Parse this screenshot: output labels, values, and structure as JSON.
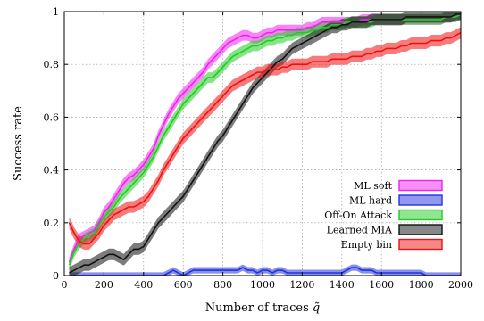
{
  "chart_data": {
    "type": "line",
    "xlabel": "Number of traces",
    "xlabel_symbol": "q̃",
    "ylabel": "Success rate",
    "xlim": [
      0,
      2000
    ],
    "ylim": [
      0,
      1
    ],
    "x_ticks": [
      0,
      200,
      400,
      600,
      800,
      1000,
      1200,
      1400,
      1600,
      1800,
      2000
    ],
    "y_ticks": [
      0,
      0.2,
      0.4,
      0.6,
      0.8,
      1
    ],
    "y_tick_labels": [
      "0",
      "0.2",
      "0.4",
      "0.6",
      "0.8",
      "1"
    ],
    "grid": true,
    "legend_position": "bottom-right",
    "x": [
      25,
      50,
      75,
      100,
      125,
      150,
      175,
      200,
      225,
      250,
      275,
      300,
      325,
      350,
      375,
      400,
      425,
      450,
      475,
      500,
      525,
      550,
      575,
      600,
      625,
      650,
      675,
      700,
      725,
      750,
      775,
      800,
      825,
      850,
      875,
      900,
      925,
      950,
      975,
      1000,
      1025,
      1050,
      1075,
      1100,
      1125,
      1150,
      1175,
      1200,
      1225,
      1250,
      1275,
      1300,
      1325,
      1350,
      1375,
      1400,
      1425,
      1450,
      1475,
      1500,
      1525,
      1550,
      1575,
      1600,
      1625,
      1650,
      1675,
      1700,
      1725,
      1750,
      1775,
      1800,
      1825,
      1850,
      1875,
      1900,
      1925,
      1950,
      1975,
      2000
    ],
    "series": [
      {
        "name": "ML soft",
        "color": "#ee22ee",
        "band": 0.02,
        "values": [
          0.05,
          0.1,
          0.14,
          0.15,
          0.16,
          0.17,
          0.2,
          0.24,
          0.26,
          0.29,
          0.32,
          0.35,
          0.37,
          0.38,
          0.4,
          0.42,
          0.45,
          0.48,
          0.53,
          0.57,
          0.61,
          0.64,
          0.67,
          0.69,
          0.71,
          0.73,
          0.75,
          0.77,
          0.8,
          0.82,
          0.84,
          0.86,
          0.88,
          0.89,
          0.9,
          0.91,
          0.91,
          0.9,
          0.9,
          0.91,
          0.92,
          0.92,
          0.93,
          0.93,
          0.93,
          0.93,
          0.93,
          0.93,
          0.94,
          0.94,
          0.95,
          0.96,
          0.96,
          0.96,
          0.96,
          0.96,
          0.96,
          0.96,
          0.96,
          0.97,
          0.97,
          0.97,
          0.97,
          0.97,
          0.97,
          0.97,
          0.97,
          0.97,
          0.97,
          0.97,
          0.97,
          0.97,
          0.97,
          0.97,
          0.97,
          0.97,
          0.98,
          0.98,
          0.98,
          0.99
        ]
      },
      {
        "name": "ML hard",
        "color": "#2233dd",
        "band": 0.012,
        "values": [
          0,
          0,
          0,
          0,
          0,
          0,
          0,
          0,
          0,
          0,
          0,
          0,
          0,
          0,
          0,
          0,
          0,
          0,
          0,
          0,
          0.01,
          0.02,
          0.01,
          0,
          0.01,
          0.02,
          0.02,
          0.02,
          0.02,
          0.02,
          0.02,
          0.02,
          0.02,
          0.02,
          0.02,
          0.03,
          0.02,
          0.02,
          0.01,
          0.02,
          0.02,
          0.01,
          0.02,
          0.02,
          0.01,
          0.01,
          0.01,
          0.01,
          0.01,
          0.01,
          0.01,
          0.01,
          0.01,
          0.01,
          0.01,
          0.01,
          0.02,
          0.03,
          0.03,
          0.02,
          0.02,
          0.02,
          0.01,
          0.01,
          0.01,
          0.01,
          0.01,
          0.01,
          0.01,
          0.01,
          0.01,
          0.01,
          0,
          0,
          0,
          0,
          0,
          0,
          0,
          0
        ]
      },
      {
        "name": "Off-On Attack",
        "color": "#22cc22",
        "band": 0.02,
        "values": [
          0.04,
          0.09,
          0.12,
          0.14,
          0.15,
          0.16,
          0.19,
          0.22,
          0.24,
          0.26,
          0.29,
          0.31,
          0.33,
          0.35,
          0.37,
          0.39,
          0.42,
          0.45,
          0.49,
          0.53,
          0.56,
          0.59,
          0.62,
          0.65,
          0.67,
          0.69,
          0.71,
          0.73,
          0.75,
          0.75,
          0.77,
          0.79,
          0.81,
          0.83,
          0.84,
          0.85,
          0.86,
          0.87,
          0.87,
          0.88,
          0.89,
          0.89,
          0.9,
          0.9,
          0.91,
          0.91,
          0.92,
          0.92,
          0.92,
          0.93,
          0.93,
          0.94,
          0.94,
          0.95,
          0.95,
          0.95,
          0.96,
          0.96,
          0.96,
          0.96,
          0.96,
          0.96,
          0.97,
          0.97,
          0.97,
          0.97,
          0.97,
          0.97,
          0.97,
          0.97,
          0.97,
          0.97,
          0.97,
          0.97,
          0.97,
          0.97,
          0.98,
          0.98,
          0.98,
          0.99
        ]
      },
      {
        "name": "Learned MIA",
        "color": "#111111",
        "band": 0.022,
        "values": [
          0.01,
          0.02,
          0.03,
          0.04,
          0.04,
          0.05,
          0.06,
          0.07,
          0.08,
          0.08,
          0.07,
          0.06,
          0.08,
          0.1,
          0.1,
          0.11,
          0.14,
          0.17,
          0.2,
          0.22,
          0.24,
          0.26,
          0.28,
          0.3,
          0.33,
          0.36,
          0.39,
          0.42,
          0.45,
          0.48,
          0.51,
          0.53,
          0.56,
          0.59,
          0.62,
          0.65,
          0.68,
          0.71,
          0.73,
          0.75,
          0.77,
          0.79,
          0.81,
          0.82,
          0.84,
          0.86,
          0.87,
          0.88,
          0.89,
          0.9,
          0.91,
          0.92,
          0.93,
          0.94,
          0.94,
          0.95,
          0.95,
          0.96,
          0.96,
          0.96,
          0.96,
          0.97,
          0.97,
          0.97,
          0.97,
          0.97,
          0.97,
          0.97,
          0.98,
          0.98,
          0.98,
          0.98,
          0.98,
          0.98,
          0.98,
          0.98,
          0.98,
          0.98,
          0.99,
          0.99
        ]
      },
      {
        "name": "Empty bin",
        "color": "#ee1111",
        "band": 0.022,
        "values": [
          0.2,
          0.16,
          0.13,
          0.12,
          0.12,
          0.14,
          0.16,
          0.19,
          0.21,
          0.23,
          0.24,
          0.25,
          0.26,
          0.26,
          0.27,
          0.28,
          0.3,
          0.33,
          0.36,
          0.4,
          0.43,
          0.46,
          0.49,
          0.52,
          0.54,
          0.56,
          0.58,
          0.6,
          0.62,
          0.64,
          0.66,
          0.68,
          0.7,
          0.72,
          0.73,
          0.74,
          0.75,
          0.76,
          0.77,
          0.77,
          0.78,
          0.78,
          0.78,
          0.79,
          0.79,
          0.8,
          0.8,
          0.8,
          0.8,
          0.81,
          0.81,
          0.81,
          0.81,
          0.82,
          0.82,
          0.82,
          0.82,
          0.83,
          0.83,
          0.83,
          0.84,
          0.84,
          0.85,
          0.85,
          0.86,
          0.86,
          0.86,
          0.87,
          0.87,
          0.88,
          0.88,
          0.88,
          0.88,
          0.89,
          0.89,
          0.89,
          0.9,
          0.9,
          0.91,
          0.92
        ]
      }
    ]
  }
}
